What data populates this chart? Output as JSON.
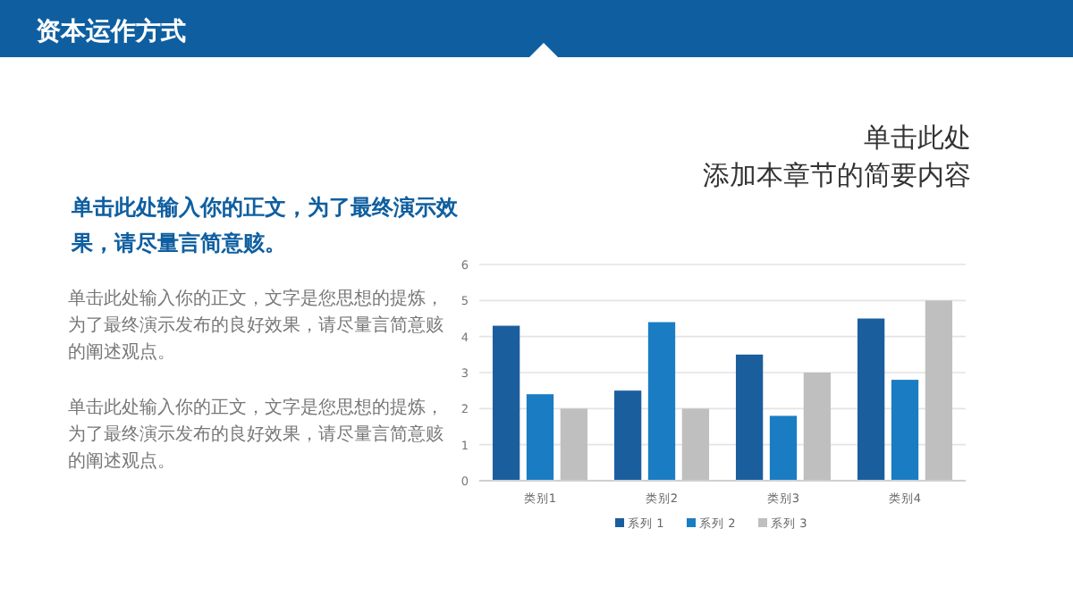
{
  "chart_data": {
    "type": "bar",
    "title": "资本运作方式",
    "subtitle": "单击此处添加本章节的简要内容",
    "annotations": [
      "单击此处输入你的正文，为了最终演示效果，请尽量言简意赅。",
      "单击此处输入你的正文，文字是您思想的提炼，为了最终演示发布的良好效果，请尽量言简意赅的阐述观点。",
      "单击此处输入你的正文，文字是您思想的提炼，为了最终演示发布的良好效果，请尽量言简意赅的阐述观点。"
    ],
    "categories": [
      "类别1",
      "类别2",
      "类别3",
      "类别4"
    ],
    "series": [
      {
        "name": "系列 1",
        "color": "#1b5e9e",
        "values": [
          4.3,
          2.5,
          3.5,
          4.5
        ]
      },
      {
        "name": "系列 2",
        "color": "#1a7dc4",
        "values": [
          2.4,
          4.4,
          1.8,
          2.8
        ]
      },
      {
        "name": "系列 3",
        "color": "#bfbfbf",
        "values": [
          2,
          2,
          3,
          5
        ]
      }
    ],
    "ylim": [
      0,
      6
    ],
    "yticks": [
      0,
      1,
      2,
      3,
      4,
      5,
      6
    ],
    "grid": "y",
    "legend": "bottom"
  }
}
